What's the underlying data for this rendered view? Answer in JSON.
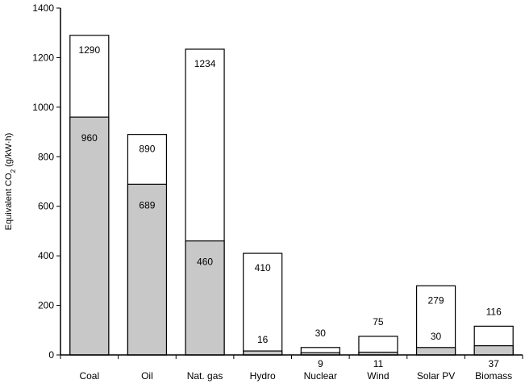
{
  "chart_data": {
    "type": "bar",
    "ylabel": "Equivalent CO₂ (g/kW·h)",
    "ylabel_parts": [
      "Equivalent CO",
      "2",
      " (g/kW·h)"
    ],
    "ylim": [
      0,
      1400
    ],
    "yticks": [
      0,
      200,
      400,
      600,
      800,
      1000,
      1200,
      1400
    ],
    "grid": false,
    "legend": "none",
    "categories": [
      "Coal",
      "Oil",
      "Nat. gas",
      "Hydro",
      "Nuclear",
      "Wind",
      "Solar PV",
      "Biomass"
    ],
    "series": [
      {
        "values": [
          960,
          689,
          460,
          16,
          9,
          11,
          30,
          37
        ]
      },
      {
        "values": [
          1290,
          890,
          1234,
          410,
          30,
          75,
          279,
          116
        ]
      }
    ],
    "low_labels": [
      "960",
      "689",
      "460",
      "16",
      "9",
      "11",
      "30",
      "37"
    ],
    "high_labels": [
      "1290",
      "890",
      "1234",
      "410",
      "30",
      "75",
      "279",
      "116"
    ],
    "colors": {
      "low_fill": "#c8c8c8",
      "high_fill": "#ffffff",
      "stroke": "#000000"
    }
  }
}
